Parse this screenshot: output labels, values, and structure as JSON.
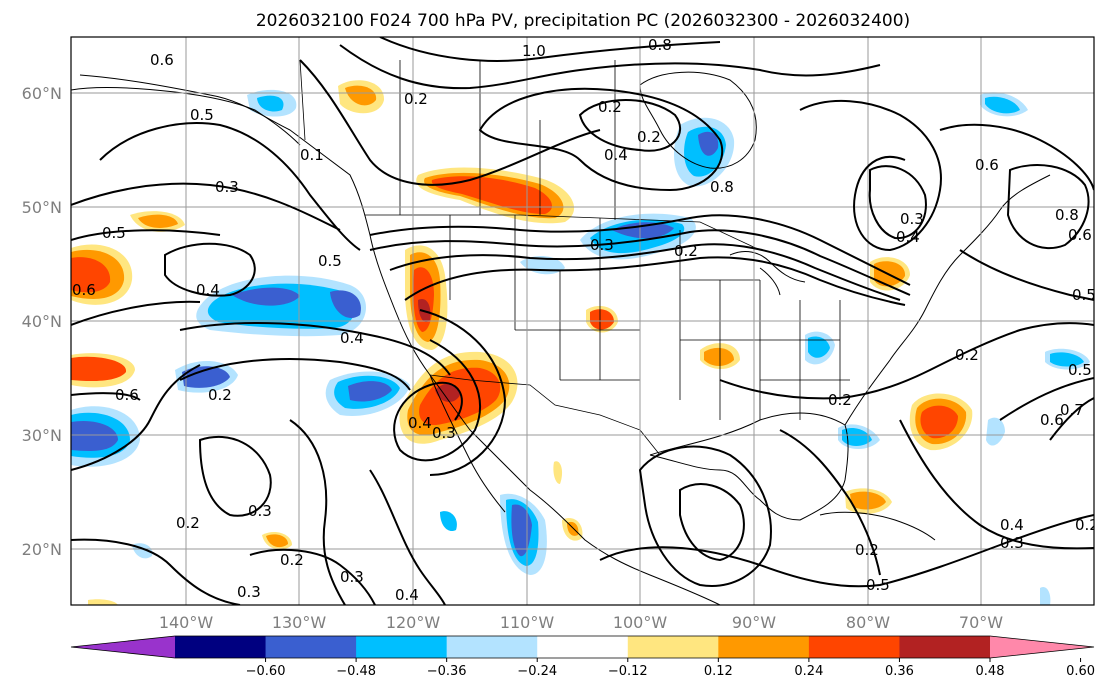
{
  "title": "2026032100 F024 700 hPa PV, precipitation PC (2026032300 - 2026032400)",
  "lat_labels": [
    "60°N",
    "50°N",
    "40°N",
    "30°N",
    "20°N"
  ],
  "lon_labels": [
    "140°W",
    "130°W",
    "120°W",
    "110°W",
    "100°W",
    "90°W",
    "80°W",
    "70°W"
  ],
  "colorbar": {
    "tick_labels": [
      "−0.60",
      "−0.48",
      "−0.36",
      "−0.24",
      "−0.12",
      "0.12",
      "0.24",
      "0.36",
      "0.48",
      "0.60"
    ],
    "colors": [
      "#9933cc",
      "#000080",
      "#3a5fd0",
      "#00bfff",
      "#b3e3ff",
      "#ffffff",
      "#ffe680",
      "#ff9900",
      "#ff4500",
      "#b22222",
      "#ff88aa"
    ]
  },
  "contour_labels": [
    "0.6",
    "1.0",
    "0.8",
    "0.5",
    "0.2",
    "0.2",
    "0.4",
    "0.2",
    "0.8",
    "0.1",
    "0.3",
    "0.6",
    "0.3",
    "0.5",
    "0.5",
    "0.3",
    "0.4",
    "0.2",
    "0.4",
    "0.4",
    "0.6",
    "0.2",
    "0.2",
    "0.5",
    "0.6",
    "0.4",
    "0.3",
    "0.2",
    "0.2",
    "0.3",
    "0.3",
    "0.2",
    "0.4",
    "0.3",
    "0.6",
    "0.7",
    "0.5",
    "0.4",
    "0.3",
    "0.2",
    "0.5",
    "0.8",
    "0.6",
    "0.2"
  ]
}
